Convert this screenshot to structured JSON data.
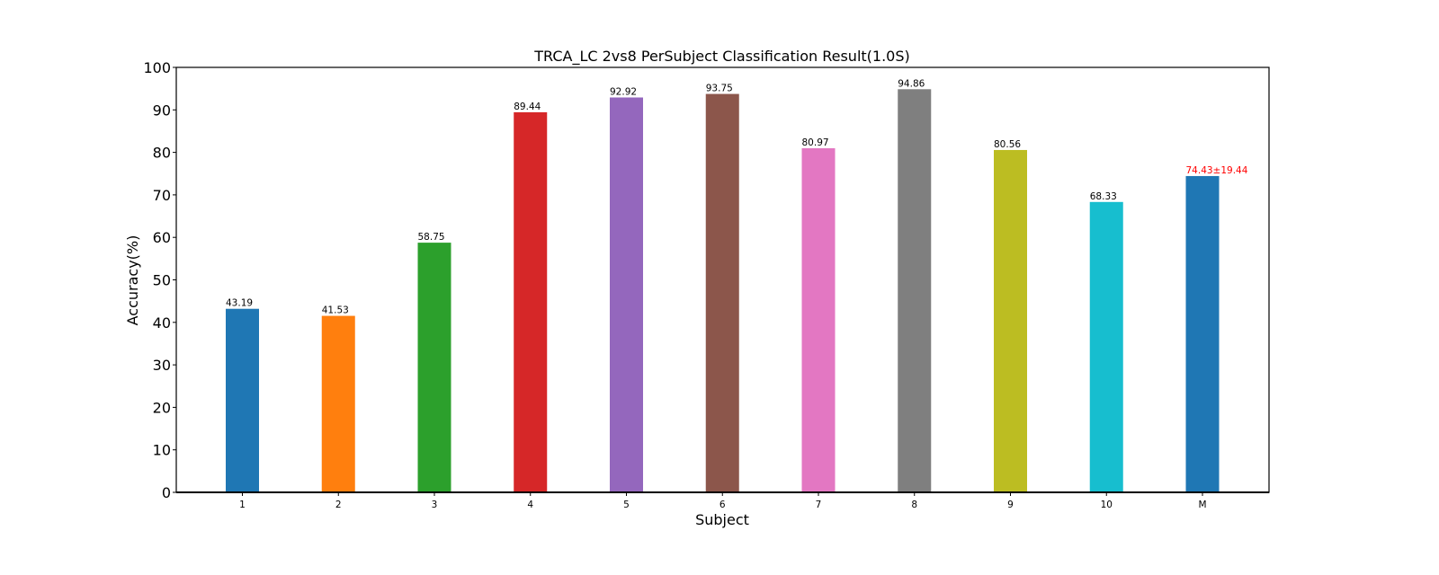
{
  "chart_data": {
    "type": "bar",
    "title": "TRCA_LC 2vs8 PerSubject Classification Result(1.0S)",
    "xlabel": "Subject",
    "ylabel": "Accuracy(%)",
    "ylim": [
      0,
      100
    ],
    "yticks": [
      0,
      10,
      20,
      30,
      40,
      50,
      60,
      70,
      80,
      90,
      100
    ],
    "grid": false,
    "categories": [
      "1",
      "2",
      "3",
      "4",
      "5",
      "6",
      "7",
      "8",
      "9",
      "10",
      "M"
    ],
    "values": [
      43.19,
      41.53,
      58.75,
      89.44,
      92.92,
      93.75,
      80.97,
      94.86,
      80.56,
      68.33,
      74.43
    ],
    "data_labels": [
      "43.19",
      "41.53",
      "58.75",
      "89.44",
      "92.92",
      "93.75",
      "80.97",
      "94.86",
      "80.56",
      "68.33",
      "74.43±19.44"
    ],
    "colors": [
      "#1f77b4",
      "#ff7f0e",
      "#2ca02c",
      "#d62728",
      "#9467bd",
      "#8c564b",
      "#e377c2",
      "#7f7f7f",
      "#bcbd22",
      "#17becf",
      "#1f77b4"
    ],
    "label_colors": [
      "#000000",
      "#000000",
      "#000000",
      "#000000",
      "#000000",
      "#000000",
      "#000000",
      "#000000",
      "#000000",
      "#000000",
      "#ff0000"
    ]
  }
}
